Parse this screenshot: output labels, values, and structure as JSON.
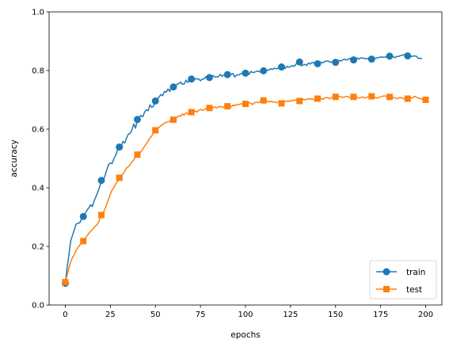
{
  "chart_data": {
    "type": "line",
    "xlabel": "epochs",
    "ylabel": "accuracy",
    "xlim": [
      -9,
      209
    ],
    "ylim": [
      0.0,
      1.0
    ],
    "xticks": [
      0,
      25,
      50,
      75,
      100,
      125,
      150,
      175,
      200
    ],
    "yticks": [
      0.0,
      0.2,
      0.4,
      0.6,
      0.8,
      1.0
    ],
    "grid": false,
    "legend_position": "lower-right",
    "series": [
      {
        "name": "train",
        "color": "#1f77b4",
        "marker": "circle",
        "marker_every": 10,
        "values": [
          0.074,
          0.127,
          0.171,
          0.219,
          0.238,
          0.257,
          0.276,
          0.279,
          0.28,
          0.294,
          0.302,
          0.312,
          0.323,
          0.331,
          0.342,
          0.336,
          0.355,
          0.37,
          0.385,
          0.401,
          0.425,
          0.426,
          0.441,
          0.461,
          0.479,
          0.484,
          0.483,
          0.5,
          0.511,
          0.529,
          0.539,
          0.54,
          0.558,
          0.553,
          0.57,
          0.583,
          0.586,
          0.598,
          0.618,
          0.603,
          0.633,
          0.638,
          0.647,
          0.642,
          0.658,
          0.666,
          0.663,
          0.683,
          0.674,
          0.679,
          0.696,
          0.702,
          0.709,
          0.718,
          0.714,
          0.729,
          0.726,
          0.737,
          0.728,
          0.749,
          0.744,
          0.747,
          0.753,
          0.755,
          0.761,
          0.753,
          0.754,
          0.767,
          0.759,
          0.768,
          0.771,
          0.768,
          0.771,
          0.772,
          0.771,
          0.765,
          0.771,
          0.771,
          0.779,
          0.771,
          0.776,
          0.78,
          0.783,
          0.778,
          0.778,
          0.779,
          0.787,
          0.78,
          0.785,
          0.788,
          0.786,
          0.782,
          0.786,
          0.79,
          0.778,
          0.784,
          0.785,
          0.787,
          0.791,
          0.788,
          0.791,
          0.792,
          0.787,
          0.797,
          0.793,
          0.794,
          0.797,
          0.798,
          0.795,
          0.799,
          0.799,
          0.799,
          0.801,
          0.802,
          0.806,
          0.804,
          0.808,
          0.806,
          0.807,
          0.811,
          0.812,
          0.809,
          0.807,
          0.814,
          0.811,
          0.813,
          0.817,
          0.814,
          0.822,
          0.825,
          0.829,
          0.816,
          0.819,
          0.821,
          0.817,
          0.826,
          0.822,
          0.828,
          0.826,
          0.818,
          0.823,
          0.828,
          0.828,
          0.826,
          0.831,
          0.832,
          0.832,
          0.828,
          0.829,
          0.833,
          0.828,
          0.829,
          0.835,
          0.832,
          0.837,
          0.839,
          0.836,
          0.838,
          0.842,
          0.838,
          0.836,
          0.838,
          0.843,
          0.839,
          0.843,
          0.843,
          0.841,
          0.84,
          0.841,
          0.843,
          0.839,
          0.842,
          0.841,
          0.843,
          0.844,
          0.846,
          0.846,
          0.845,
          0.847,
          0.846,
          0.849,
          0.845,
          0.847,
          0.844,
          0.848,
          0.848,
          0.851,
          0.852,
          0.854,
          0.853,
          0.85,
          0.851,
          0.848,
          0.849,
          0.85,
          0.848,
          0.841,
          0.842,
          0.84
        ]
      },
      {
        "name": "test",
        "color": "#ff7f0e",
        "marker": "square",
        "marker_every": 10,
        "values": [
          0.078,
          0.102,
          0.126,
          0.148,
          0.162,
          0.171,
          0.187,
          0.196,
          0.204,
          0.212,
          0.218,
          0.225,
          0.236,
          0.244,
          0.251,
          0.257,
          0.265,
          0.271,
          0.277,
          0.29,
          0.307,
          0.314,
          0.327,
          0.344,
          0.361,
          0.378,
          0.393,
          0.4,
          0.414,
          0.421,
          0.434,
          0.44,
          0.447,
          0.456,
          0.467,
          0.472,
          0.478,
          0.488,
          0.495,
          0.506,
          0.513,
          0.516,
          0.523,
          0.532,
          0.542,
          0.55,
          0.56,
          0.57,
          0.577,
          0.589,
          0.596,
          0.6,
          0.606,
          0.612,
          0.616,
          0.62,
          0.624,
          0.624,
          0.628,
          0.63,
          0.632,
          0.636,
          0.64,
          0.646,
          0.644,
          0.652,
          0.648,
          0.656,
          0.652,
          0.658,
          0.658,
          0.656,
          0.662,
          0.658,
          0.664,
          0.668,
          0.664,
          0.666,
          0.67,
          0.672,
          0.672,
          0.67,
          0.674,
          0.676,
          0.672,
          0.676,
          0.678,
          0.674,
          0.676,
          0.68,
          0.678,
          0.68,
          0.676,
          0.682,
          0.68,
          0.684,
          0.682,
          0.686,
          0.686,
          0.684,
          0.686,
          0.688,
          0.69,
          0.688,
          0.684,
          0.69,
          0.692,
          0.69,
          0.694,
          0.696,
          0.698,
          0.694,
          0.696,
          0.692,
          0.696,
          0.692,
          0.694,
          0.69,
          0.692,
          0.69,
          0.688,
          0.692,
          0.694,
          0.696,
          0.694,
          0.698,
          0.696,
          0.7,
          0.698,
          0.696,
          0.696,
          0.7,
          0.702,
          0.7,
          0.702,
          0.704,
          0.702,
          0.704,
          0.7,
          0.702,
          0.704,
          0.706,
          0.704,
          0.702,
          0.706,
          0.708,
          0.706,
          0.704,
          0.708,
          0.71,
          0.71,
          0.708,
          0.712,
          0.71,
          0.708,
          0.71,
          0.712,
          0.71,
          0.708,
          0.712,
          0.71,
          0.712,
          0.708,
          0.706,
          0.708,
          0.71,
          0.706,
          0.708,
          0.71,
          0.708,
          0.712,
          0.71,
          0.708,
          0.706,
          0.708,
          0.71,
          0.712,
          0.714,
          0.712,
          0.71,
          0.71,
          0.712,
          0.708,
          0.706,
          0.704,
          0.706,
          0.708,
          0.706,
          0.704,
          0.702,
          0.704,
          0.706,
          0.706,
          0.708,
          0.712,
          0.708,
          0.706,
          0.704,
          0.702,
          0.704,
          0.7
        ]
      }
    ]
  }
}
